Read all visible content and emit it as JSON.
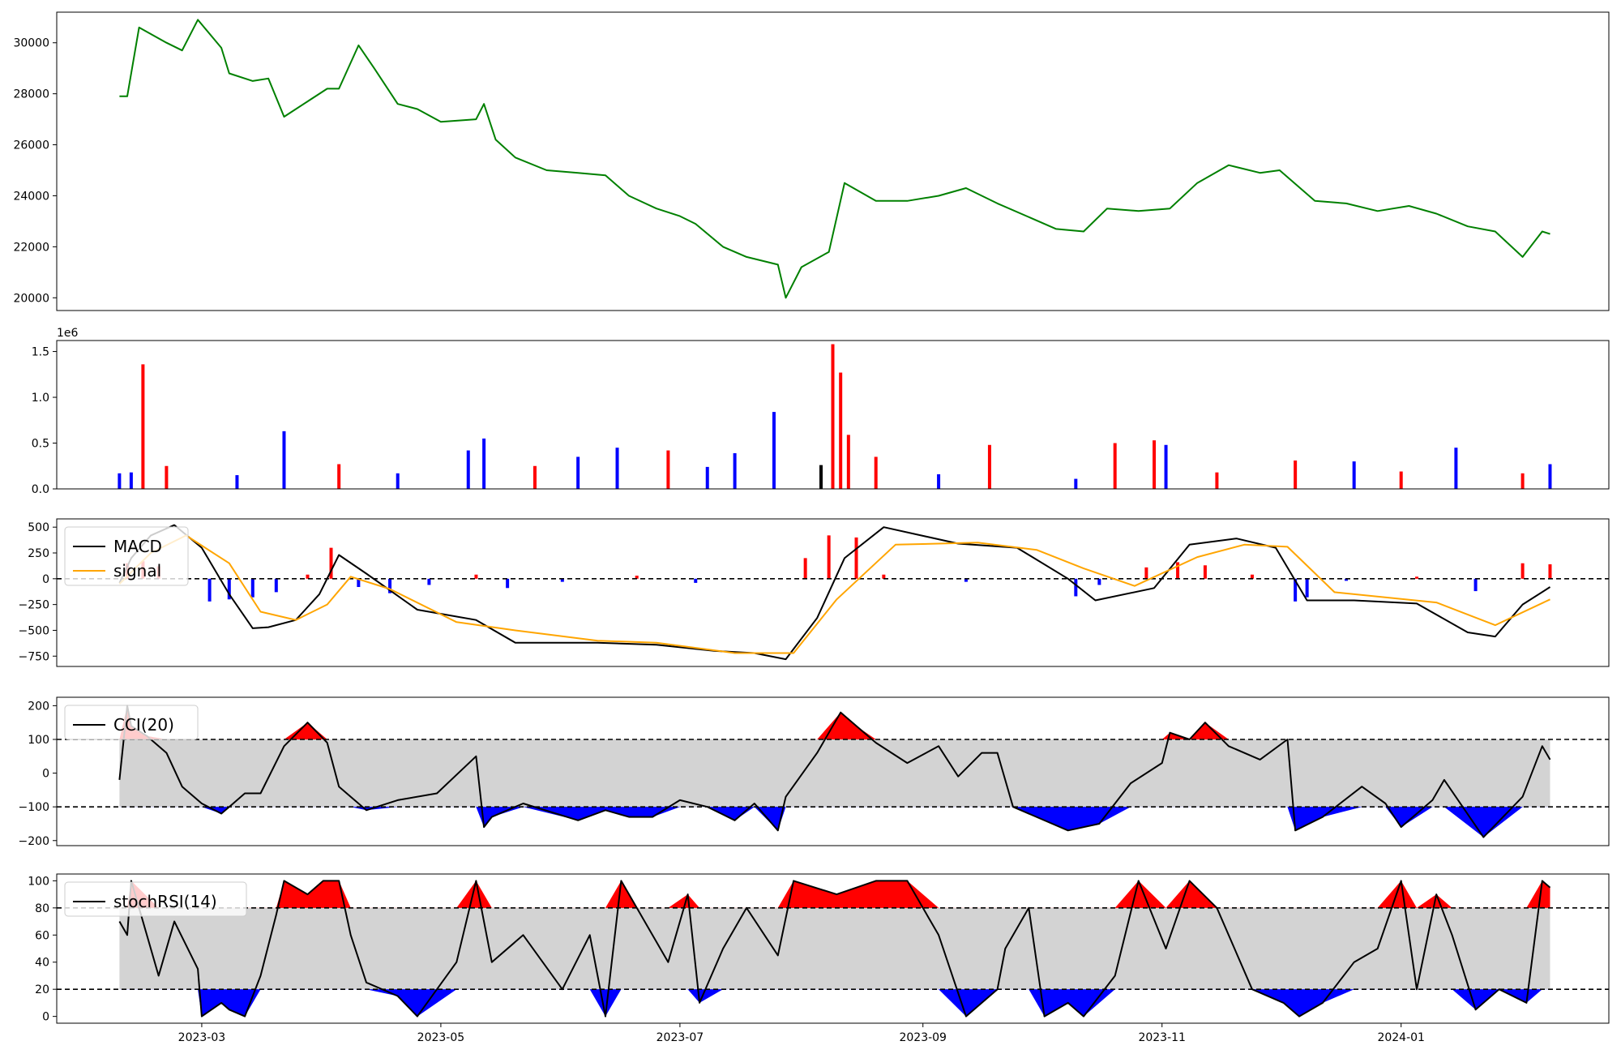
{
  "chart_data": [
    {
      "type": "line",
      "panel": "price",
      "ylim": [
        19500,
        31200
      ],
      "yticks": [
        20000,
        22000,
        24000,
        26000,
        28000,
        30000
      ],
      "ytick_labels": [
        "20000",
        "22000",
        "24000",
        "26000",
        "28000",
        "30000"
      ],
      "color": "#008000",
      "x": [
        "2023-02-08",
        "2023-02-10",
        "2023-02-13",
        "2023-02-20",
        "2023-02-24",
        "2023-02-28",
        "2023-03-06",
        "2023-03-08",
        "2023-03-14",
        "2023-03-18",
        "2023-03-22",
        "2023-03-28",
        "2023-04-02",
        "2023-04-05",
        "2023-04-10",
        "2023-04-14",
        "2023-04-20",
        "2023-04-25",
        "2023-05-01",
        "2023-05-10",
        "2023-05-12",
        "2023-05-15",
        "2023-05-20",
        "2023-05-28",
        "2023-06-05",
        "2023-06-12",
        "2023-06-18",
        "2023-06-25",
        "2023-07-01",
        "2023-07-05",
        "2023-07-12",
        "2023-07-18",
        "2023-07-26",
        "2023-07-28",
        "2023-08-01",
        "2023-08-08",
        "2023-08-12",
        "2023-08-20",
        "2023-08-28",
        "2023-09-05",
        "2023-09-12",
        "2023-09-20",
        "2023-10-05",
        "2023-10-12",
        "2023-10-18",
        "2023-10-26",
        "2023-11-03",
        "2023-11-10",
        "2023-11-18",
        "2023-11-26",
        "2023-12-01",
        "2023-12-10",
        "2023-12-18",
        "2023-12-26",
        "2024-01-03",
        "2024-01-10",
        "2024-01-18",
        "2024-01-25",
        "2024-02-01",
        "2024-02-06",
        "2024-02-08"
      ],
      "y": [
        27900,
        27900,
        30600,
        30000,
        29700,
        30900,
        29800,
        28800,
        28500,
        28600,
        27100,
        27700,
        28200,
        28200,
        29900,
        29000,
        27600,
        27400,
        26900,
        27000,
        27600,
        26200,
        25500,
        25000,
        24900,
        24800,
        24000,
        23500,
        23200,
        22900,
        22000,
        21600,
        21300,
        20000,
        21200,
        21800,
        24500,
        23800,
        23800,
        24000,
        24300,
        23700,
        22700,
        22600,
        23500,
        23400,
        23500,
        24500,
        25200,
        24900,
        25000,
        23800,
        23700,
        23400,
        23600,
        23300,
        22800,
        22600,
        21600,
        22600,
        22500
      ]
    },
    {
      "type": "bar",
      "panel": "volume",
      "ylim": [
        0,
        1620000
      ],
      "yticks": [
        0,
        500000,
        1000000,
        1500000
      ],
      "ytick_labels": [
        "0.0",
        "0.5",
        "1.0",
        "1.5"
      ],
      "offset_label": "1e6",
      "colors": {
        "up": "#ff0000",
        "down": "#0000ff",
        "flat": "#000000"
      },
      "x": [
        "2023-02-08",
        "2023-02-11",
        "2023-02-14",
        "2023-02-20",
        "2023-03-10",
        "2023-03-22",
        "2023-04-05",
        "2023-04-20",
        "2023-05-08",
        "2023-05-12",
        "2023-05-25",
        "2023-06-05",
        "2023-06-15",
        "2023-06-28",
        "2023-07-08",
        "2023-07-15",
        "2023-07-25",
        "2023-08-06",
        "2023-08-09",
        "2023-08-11",
        "2023-08-13",
        "2023-08-20",
        "2023-09-05",
        "2023-09-18",
        "2023-10-10",
        "2023-10-20",
        "2023-10-30",
        "2023-11-02",
        "2023-11-15",
        "2023-12-05",
        "2023-12-20",
        "2024-01-01",
        "2024-01-15",
        "2024-02-01",
        "2024-02-08"
      ],
      "values": [
        170000,
        180000,
        1360000,
        250000,
        150000,
        630000,
        270000,
        170000,
        420000,
        550000,
        250000,
        350000,
        450000,
        420000,
        240000,
        390000,
        840000,
        260000,
        1580000,
        1270000,
        590000,
        350000,
        160000,
        480000,
        110000,
        500000,
        530000,
        480000,
        180000,
        310000,
        300000,
        190000,
        450000,
        170000,
        270000
      ],
      "direction": [
        "down",
        "down",
        "up",
        "up",
        "down",
        "down",
        "up",
        "down",
        "down",
        "down",
        "up",
        "down",
        "down",
        "up",
        "down",
        "down",
        "down",
        "flat",
        "up",
        "up",
        "up",
        "up",
        "down",
        "up",
        "blue",
        "up",
        "up",
        "down",
        "up",
        "red",
        "down",
        "up",
        "down",
        "up",
        "down"
      ]
    },
    {
      "type": "line",
      "panel": "MACD",
      "ylim": [
        -850,
        580
      ],
      "yticks": [
        -750,
        -500,
        -250,
        0,
        250,
        500
      ],
      "ytick_labels": [
        "−750",
        "−500",
        "−250",
        "0",
        "250",
        "500"
      ],
      "legend_position": "upper-left",
      "reference_lines": [
        0
      ],
      "series": [
        {
          "name": "MACD",
          "color": "#000000",
          "x": [
            "2023-02-08",
            "2023-02-11",
            "2023-02-16",
            "2023-02-22",
            "2023-03-01",
            "2023-03-08",
            "2023-03-14",
            "2023-03-18",
            "2023-03-25",
            "2023-03-31",
            "2023-04-05",
            "2023-04-12",
            "2023-04-25",
            "2023-05-10",
            "2023-05-20",
            "2023-06-10",
            "2023-06-25",
            "2023-07-10",
            "2023-07-20",
            "2023-07-28",
            "2023-08-05",
            "2023-08-12",
            "2023-08-22",
            "2023-09-10",
            "2023-09-25",
            "2023-10-08",
            "2023-10-15",
            "2023-10-30",
            "2023-11-08",
            "2023-11-20",
            "2023-11-30",
            "2023-12-08",
            "2023-12-20",
            "2024-01-05",
            "2024-01-18",
            "2024-01-25",
            "2024-02-01",
            "2024-02-08"
          ],
          "y": [
            -40,
            200,
            420,
            520,
            300,
            -150,
            -480,
            -470,
            -400,
            -150,
            230,
            50,
            -300,
            -400,
            -620,
            -620,
            -640,
            -700,
            -720,
            -780,
            -380,
            200,
            500,
            340,
            300,
            0,
            -210,
            -90,
            330,
            390,
            300,
            -210,
            -210,
            -240,
            -520,
            -560,
            -250,
            -80
          ]
        },
        {
          "name": "signal",
          "color": "#ffa500",
          "x": [
            "2023-02-08",
            "2023-02-16",
            "2023-02-25",
            "2023-03-08",
            "2023-03-16",
            "2023-03-25",
            "2023-04-02",
            "2023-04-08",
            "2023-04-18",
            "2023-05-05",
            "2023-05-20",
            "2023-06-10",
            "2023-06-25",
            "2023-07-15",
            "2023-07-30",
            "2023-08-10",
            "2023-08-25",
            "2023-09-15",
            "2023-09-30",
            "2023-10-12",
            "2023-10-25",
            "2023-11-10",
            "2023-11-22",
            "2023-12-03",
            "2023-12-15",
            "2024-01-10",
            "2024-01-25",
            "2024-02-08"
          ],
          "y": [
            -50,
            250,
            420,
            150,
            -320,
            -400,
            -250,
            20,
            -100,
            -420,
            -500,
            -600,
            -620,
            -720,
            -720,
            -200,
            330,
            350,
            280,
            100,
            -70,
            210,
            330,
            310,
            -130,
            -230,
            -450,
            -200
          ]
        }
      ],
      "histogram": {
        "colors": {
          "positive": "#ff0000",
          "negative": "#0000ff"
        },
        "x": [
          "2023-02-10",
          "2023-02-14",
          "2023-02-18",
          "2023-03-03",
          "2023-03-08",
          "2023-03-14",
          "2023-03-20",
          "2023-03-28",
          "2023-04-03",
          "2023-04-10",
          "2023-04-18",
          "2023-04-28",
          "2023-05-10",
          "2023-05-18",
          "2023-06-01",
          "2023-06-20",
          "2023-07-05",
          "2023-08-02",
          "2023-08-08",
          "2023-08-15",
          "2023-08-22",
          "2023-09-12",
          "2023-10-10",
          "2023-10-16",
          "2023-10-28",
          "2023-11-05",
          "2023-11-12",
          "2023-11-24",
          "2023-12-05",
          "2023-12-08",
          "2023-12-18",
          "2024-01-05",
          "2024-01-20",
          "2024-02-01",
          "2024-02-08"
        ],
        "y": [
          150,
          170,
          120,
          -220,
          -200,
          -180,
          -130,
          40,
          300,
          -80,
          -140,
          -60,
          40,
          -90,
          -30,
          30,
          -40,
          200,
          420,
          400,
          40,
          -30,
          -170,
          -60,
          110,
          160,
          130,
          40,
          -220,
          -180,
          -20,
          20,
          -120,
          150,
          140
        ]
      }
    },
    {
      "type": "area",
      "panel": "CCI",
      "ylim": [
        -215,
        225
      ],
      "yticks": [
        -200,
        -100,
        0,
        100,
        200
      ],
      "ytick_labels": [
        "−200",
        "−100",
        "0",
        "100",
        "200"
      ],
      "legend_position": "upper-left",
      "reference_lines": [
        -100,
        100
      ],
      "fill_colors": {
        "band": "#d3d3d3",
        "above": "#ff0000",
        "below": "#0000ff"
      },
      "series": [
        {
          "name": "CCI(20)",
          "color": "#000000",
          "x": [
            "2023-02-08",
            "2023-02-10",
            "2023-02-11",
            "2023-02-15",
            "2023-02-20",
            "2023-02-24",
            "2023-03-01",
            "2023-03-06",
            "2023-03-08",
            "2023-03-12",
            "2023-03-16",
            "2023-03-22",
            "2023-03-28",
            "2023-04-02",
            "2023-04-05",
            "2023-04-08",
            "2023-04-12",
            "2023-04-20",
            "2023-04-30",
            "2023-05-10",
            "2023-05-12",
            "2023-05-14",
            "2023-05-22",
            "2023-06-05",
            "2023-06-12",
            "2023-06-18",
            "2023-06-24",
            "2023-07-01",
            "2023-07-08",
            "2023-07-15",
            "2023-07-20",
            "2023-07-26",
            "2023-07-28",
            "2023-08-05",
            "2023-08-11",
            "2023-08-15",
            "2023-08-20",
            "2023-08-28",
            "2023-09-05",
            "2023-09-10",
            "2023-09-16",
            "2023-09-20",
            "2023-09-24",
            "2023-10-08",
            "2023-10-16",
            "2023-10-24",
            "2023-11-01",
            "2023-11-03",
            "2023-11-08",
            "2023-11-12",
            "2023-11-18",
            "2023-11-26",
            "2023-12-03",
            "2023-12-05",
            "2023-12-12",
            "2023-12-22",
            "2023-12-28",
            "2024-01-01",
            "2024-01-09",
            "2024-01-12",
            "2024-01-22",
            "2024-02-01",
            "2024-02-06",
            "2024-02-08"
          ],
          "y": [
            -20,
            200,
            140,
            110,
            60,
            -40,
            -90,
            -120,
            -100,
            -60,
            -60,
            80,
            150,
            90,
            -40,
            -70,
            -110,
            -80,
            -60,
            50,
            -160,
            -130,
            -90,
            -140,
            -110,
            -130,
            -130,
            -80,
            -100,
            -140,
            -90,
            -170,
            -70,
            60,
            180,
            140,
            90,
            30,
            80,
            -10,
            60,
            60,
            -100,
            -170,
            -150,
            -30,
            30,
            120,
            100,
            150,
            80,
            40,
            100,
            -170,
            -130,
            -40,
            -90,
            -160,
            -80,
            -20,
            -190,
            -70,
            80,
            40
          ]
        }
      ]
    },
    {
      "type": "area",
      "panel": "stochRSI",
      "ylim": [
        -5,
        105
      ],
      "yticks": [
        0,
        20,
        40,
        60,
        80,
        100
      ],
      "ytick_labels": [
        "0",
        "20",
        "40",
        "60",
        "80",
        "100"
      ],
      "legend_position": "upper-left",
      "reference_lines": [
        20,
        80
      ],
      "fill_colors": {
        "band": "#d3d3d3",
        "above": "#ff0000",
        "below": "#0000ff"
      },
      "series": [
        {
          "name": "stochRSI(14)",
          "color": "#000000",
          "x": [
            "2023-02-08",
            "2023-02-10",
            "2023-02-11",
            "2023-02-18",
            "2023-02-22",
            "2023-02-28",
            "2023-03-01",
            "2023-03-06",
            "2023-03-08",
            "2023-03-12",
            "2023-03-16",
            "2023-03-20",
            "2023-03-22",
            "2023-03-28",
            "2023-04-01",
            "2023-04-05",
            "2023-04-08",
            "2023-04-12",
            "2023-04-20",
            "2023-04-25",
            "2023-05-05",
            "2023-05-10",
            "2023-05-14",
            "2023-05-22",
            "2023-06-01",
            "2023-06-08",
            "2023-06-12",
            "2023-06-16",
            "2023-06-20",
            "2023-06-28",
            "2023-07-03",
            "2023-07-06",
            "2023-07-12",
            "2023-07-18",
            "2023-07-26",
            "2023-07-30",
            "2023-08-10",
            "2023-08-20",
            "2023-08-28",
            "2023-09-05",
            "2023-09-12",
            "2023-09-20",
            "2023-09-22",
            "2023-09-28",
            "2023-10-02",
            "2023-10-08",
            "2023-10-12",
            "2023-10-20",
            "2023-10-26",
            "2023-11-02",
            "2023-11-08",
            "2023-11-15",
            "2023-11-24",
            "2023-12-02",
            "2023-12-06",
            "2023-12-12",
            "2023-12-20",
            "2023-12-26",
            "2024-01-01",
            "2024-01-05",
            "2024-01-10",
            "2024-01-14",
            "2024-01-20",
            "2024-01-26",
            "2024-02-02",
            "2024-02-06",
            "2024-02-08"
          ],
          "y": [
            70,
            60,
            100,
            30,
            70,
            35,
            0,
            10,
            5,
            0,
            30,
            75,
            100,
            90,
            100,
            100,
            60,
            25,
            15,
            0,
            40,
            100,
            40,
            60,
            20,
            60,
            0,
            100,
            80,
            40,
            90,
            10,
            50,
            80,
            45,
            100,
            90,
            100,
            100,
            60,
            0,
            20,
            50,
            80,
            0,
            10,
            0,
            30,
            100,
            50,
            100,
            80,
            20,
            10,
            0,
            10,
            40,
            50,
            100,
            20,
            90,
            60,
            5,
            20,
            10,
            100,
            95
          ]
        }
      ]
    }
  ],
  "x_axis": {
    "range": [
      "2023-01-23",
      "2024-02-23"
    ],
    "ticks": [
      "2023-03-01",
      "2023-05-01",
      "2023-07-01",
      "2023-09-01",
      "2023-11-01",
      "2024-01-01"
    ],
    "tick_labels": [
      "2023-03",
      "2023-05",
      "2023-07",
      "2023-09",
      "2023-11",
      "2024-01"
    ]
  }
}
